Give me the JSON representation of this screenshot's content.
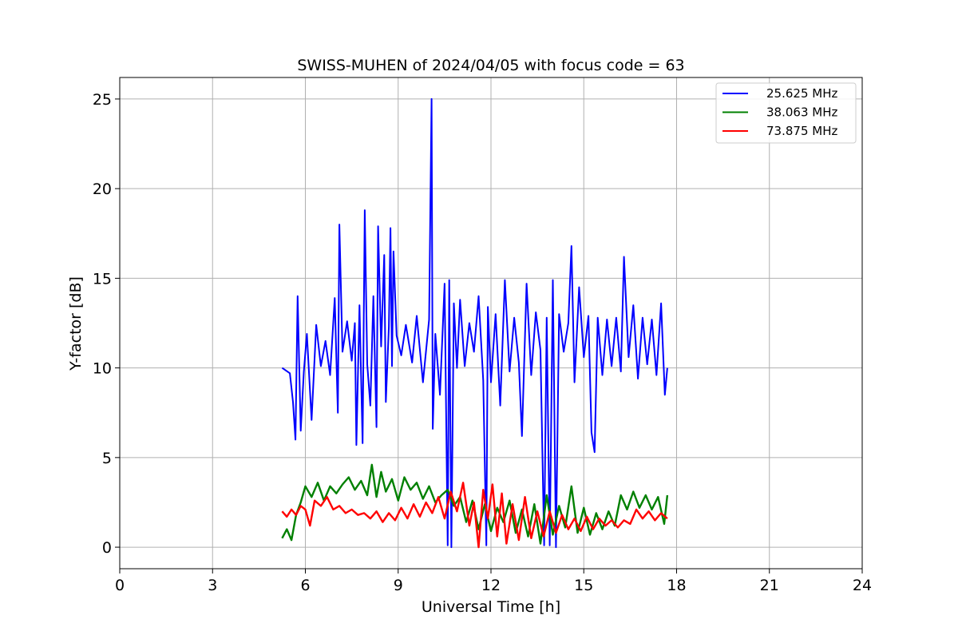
{
  "chart_data": {
    "type": "line",
    "title": "SWISS-MUHEN of 2024/04/05 with focus code = 63",
    "xlabel": "Universal Time [h]",
    "ylabel": "Y-factor [dB]",
    "xlim": [
      0,
      24
    ],
    "ylim": [
      -1.2,
      26.2
    ],
    "xticks": [
      "0",
      "3",
      "6",
      "9",
      "12",
      "15",
      "18",
      "21",
      "24"
    ],
    "yticks": [
      "0",
      "5",
      "10",
      "15",
      "20",
      "25"
    ],
    "grid": true,
    "legend_position": "top-right",
    "series": [
      {
        "name": "25.625 MHz",
        "color": "#0000ff",
        "x": [
          5.25,
          5.5,
          5.6,
          5.68,
          5.75,
          5.85,
          5.95,
          6.05,
          6.2,
          6.35,
          6.5,
          6.65,
          6.8,
          6.95,
          7.05,
          7.1,
          7.2,
          7.35,
          7.5,
          7.6,
          7.65,
          7.75,
          7.85,
          7.92,
          8.0,
          8.1,
          8.2,
          8.3,
          8.35,
          8.45,
          8.55,
          8.6,
          8.7,
          8.75,
          8.8,
          8.85,
          8.95,
          9.1,
          9.25,
          9.45,
          9.6,
          9.8,
          10.0,
          10.08,
          10.12,
          10.2,
          10.35,
          10.5,
          10.6,
          10.65,
          10.72,
          10.8,
          10.9,
          11.0,
          11.15,
          11.3,
          11.45,
          11.6,
          11.75,
          11.85,
          11.9,
          12.0,
          12.15,
          12.3,
          12.45,
          12.6,
          12.75,
          12.9,
          13.0,
          13.15,
          13.3,
          13.45,
          13.6,
          13.72,
          13.8,
          13.9,
          14.0,
          14.1,
          14.2,
          14.35,
          14.5,
          14.6,
          14.7,
          14.85,
          15.0,
          15.15,
          15.25,
          15.35,
          15.45,
          15.6,
          15.75,
          15.9,
          16.05,
          16.2,
          16.3,
          16.45,
          16.6,
          16.75,
          16.9,
          17.05,
          17.2,
          17.35,
          17.5,
          17.62,
          17.7
        ],
        "y": [
          10.0,
          9.7,
          8.1,
          6.0,
          14.0,
          6.5,
          9.8,
          11.9,
          7.1,
          12.4,
          10.1,
          11.5,
          9.6,
          13.9,
          7.5,
          18.0,
          10.9,
          12.6,
          10.4,
          12.5,
          5.7,
          13.5,
          5.8,
          18.8,
          10.2,
          7.9,
          14.0,
          6.7,
          17.9,
          11.2,
          16.3,
          8.1,
          12.3,
          17.8,
          10.1,
          16.5,
          11.8,
          10.7,
          12.4,
          10.3,
          12.9,
          9.2,
          12.7,
          25.0,
          6.6,
          11.9,
          8.5,
          14.7,
          0.1,
          14.9,
          0.0,
          13.6,
          10.0,
          13.8,
          10.1,
          12.5,
          10.9,
          14.0,
          9.3,
          0.1,
          13.4,
          9.2,
          13.0,
          7.9,
          14.9,
          9.8,
          12.8,
          10.3,
          6.2,
          14.7,
          9.6,
          13.1,
          11.0,
          0.1,
          12.8,
          0.1,
          14.9,
          0.0,
          13.0,
          10.9,
          12.5,
          16.8,
          9.2,
          14.5,
          10.6,
          12.9,
          6.4,
          5.3,
          12.8,
          9.6,
          12.7,
          10.1,
          12.8,
          9.8,
          16.2,
          10.6,
          13.5,
          9.4,
          12.8,
          10.2,
          12.7,
          9.6,
          13.6,
          8.5,
          10.0
        ]
      },
      {
        "name": "38.063 MHz",
        "color": "#008000",
        "x": [
          5.25,
          5.4,
          5.55,
          5.7,
          5.85,
          6.0,
          6.2,
          6.4,
          6.6,
          6.8,
          7.0,
          7.2,
          7.4,
          7.6,
          7.8,
          8.0,
          8.15,
          8.3,
          8.45,
          8.6,
          8.8,
          9.0,
          9.2,
          9.4,
          9.6,
          9.8,
          10.0,
          10.2,
          10.4,
          10.6,
          10.8,
          11.0,
          11.2,
          11.4,
          11.6,
          11.8,
          12.0,
          12.2,
          12.4,
          12.6,
          12.8,
          13.0,
          13.2,
          13.4,
          13.6,
          13.8,
          14.0,
          14.2,
          14.4,
          14.6,
          14.8,
          15.0,
          15.2,
          15.4,
          15.6,
          15.8,
          16.0,
          16.2,
          16.4,
          16.6,
          16.8,
          17.0,
          17.2,
          17.4,
          17.6,
          17.7
        ],
        "y": [
          0.5,
          1.0,
          0.4,
          1.8,
          2.5,
          3.4,
          2.8,
          3.6,
          2.6,
          3.4,
          3.0,
          3.5,
          3.9,
          3.2,
          3.7,
          2.9,
          4.6,
          2.8,
          4.2,
          3.1,
          3.8,
          2.6,
          3.9,
          3.2,
          3.6,
          2.7,
          3.4,
          2.5,
          2.9,
          3.2,
          2.3,
          2.8,
          1.4,
          2.6,
          1.0,
          2.4,
          0.9,
          2.2,
          1.4,
          2.6,
          0.8,
          2.1,
          0.6,
          2.4,
          0.2,
          2.9,
          0.7,
          2.3,
          1.1,
          3.4,
          0.8,
          2.2,
          0.7,
          1.9,
          1.0,
          2.0,
          1.2,
          2.9,
          2.1,
          3.1,
          2.2,
          2.9,
          2.1,
          2.8,
          1.3,
          2.9
        ]
      },
      {
        "name": "73.875 MHz",
        "color": "#ff0000",
        "x": [
          5.25,
          5.4,
          5.55,
          5.7,
          5.85,
          6.0,
          6.15,
          6.3,
          6.5,
          6.7,
          6.9,
          7.1,
          7.3,
          7.5,
          7.7,
          7.9,
          8.1,
          8.3,
          8.5,
          8.7,
          8.9,
          9.1,
          9.3,
          9.5,
          9.7,
          9.9,
          10.1,
          10.3,
          10.5,
          10.7,
          10.9,
          11.1,
          11.3,
          11.45,
          11.6,
          11.75,
          11.9,
          12.05,
          12.2,
          12.35,
          12.5,
          12.7,
          12.9,
          13.1,
          13.3,
          13.5,
          13.7,
          13.9,
          14.1,
          14.3,
          14.5,
          14.7,
          14.9,
          15.1,
          15.3,
          15.5,
          15.7,
          15.9,
          16.1,
          16.3,
          16.5,
          16.7,
          16.9,
          17.1,
          17.3,
          17.5,
          17.7
        ],
        "y": [
          2.0,
          1.7,
          2.1,
          1.8,
          2.3,
          2.1,
          1.2,
          2.6,
          2.3,
          2.8,
          2.1,
          2.3,
          1.9,
          2.1,
          1.8,
          1.9,
          1.6,
          2.0,
          1.4,
          1.9,
          1.5,
          2.2,
          1.6,
          2.4,
          1.7,
          2.5,
          1.9,
          2.8,
          1.6,
          3.1,
          2.0,
          3.6,
          1.2,
          2.5,
          0.0,
          3.2,
          1.6,
          3.5,
          0.6,
          3.0,
          0.2,
          2.4,
          0.4,
          2.8,
          0.5,
          2.0,
          0.6,
          2.0,
          0.8,
          1.8,
          1.0,
          1.6,
          0.9,
          1.7,
          1.0,
          1.6,
          1.2,
          1.5,
          1.1,
          1.5,
          1.3,
          2.1,
          1.6,
          2.0,
          1.5,
          1.9,
          1.6
        ]
      }
    ]
  }
}
